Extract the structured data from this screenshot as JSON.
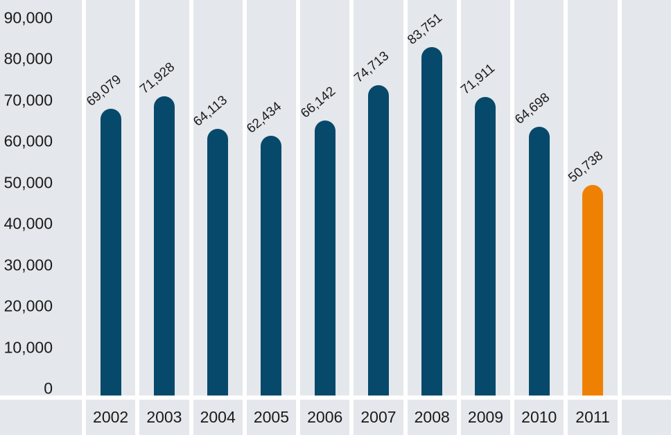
{
  "chart_data": {
    "type": "bar",
    "title": "",
    "xlabel": "",
    "ylabel": "",
    "categories": [
      "2002",
      "2003",
      "2004",
      "2005",
      "2006",
      "2007",
      "2008",
      "2009",
      "2010",
      "2011"
    ],
    "values": [
      69079,
      71928,
      64113,
      62434,
      66142,
      74713,
      83751,
      71911,
      64698,
      50738
    ],
    "value_labels": [
      "69,079",
      "71,928",
      "64,113",
      "62,434",
      "66,142",
      "74,713",
      "83,751",
      "71,911",
      "64,698",
      "50,738"
    ],
    "y_ticks": [
      0,
      10000,
      20000,
      30000,
      40000,
      50000,
      60000,
      70000,
      80000,
      90000
    ],
    "y_tick_labels": [
      "0",
      "10,000",
      "20,000",
      "30,000",
      "40,000",
      "50,000",
      "60,000",
      "70,000",
      "80,000",
      "90,000"
    ],
    "ylim": [
      0,
      90000
    ],
    "grid": false,
    "legend": null,
    "highlight_index": 9,
    "extra_empty_band_right": true,
    "colors": {
      "bar": "#07496b",
      "highlight": "#ee8104",
      "band_background": "#e4e7eb",
      "gap": "#ffffff",
      "text": "#1a1a1a"
    }
  }
}
